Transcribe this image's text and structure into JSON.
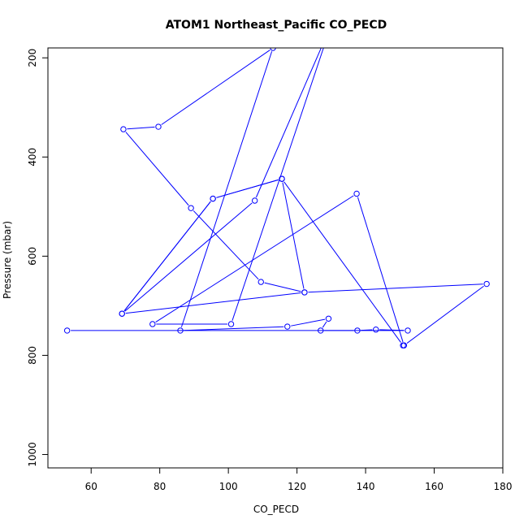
{
  "chart_data": {
    "type": "line",
    "title": "ATOM1 Northeast_Pacific CO_PECD",
    "xlabel": "CO_PECD",
    "ylabel": "Pressure (mbar)",
    "xlim": [
      47.4,
      180
    ],
    "ylim": [
      1027,
      180
    ],
    "y_reversed": true,
    "grid": false,
    "x_ticks": [
      60,
      80,
      100,
      120,
      140,
      160,
      180
    ],
    "y_ticks": [
      200,
      400,
      600,
      800,
      1000
    ],
    "series": [
      {
        "color": "#0000ff",
        "marker": "open-circle",
        "points": [
          {
            "x": 150.9,
            "y": 780
          },
          {
            "x": 115.6,
            "y": 444
          },
          {
            "x": 95.5,
            "y": 484
          },
          {
            "x": 69.0,
            "y": 716
          },
          {
            "x": 107.7,
            "y": 488
          },
          {
            "x": 130.0,
            "y": 133
          },
          {
            "x": 100.8,
            "y": 737
          },
          {
            "x": 77.9,
            "y": 737
          },
          {
            "x": 137.4,
            "y": 474
          },
          {
            "x": 151.2,
            "y": 780
          },
          {
            "x": 175.3,
            "y": 656
          },
          {
            "x": 122.2,
            "y": 673
          },
          {
            "x": 69.0,
            "y": 716
          },
          {
            "x": 95.5,
            "y": 484
          },
          {
            "x": 115.6,
            "y": 444
          },
          {
            "x": 122.2,
            "y": 673
          },
          {
            "x": 109.5,
            "y": 652
          },
          {
            "x": 89.1,
            "y": 503
          },
          {
            "x": 69.4,
            "y": 344
          },
          {
            "x": 79.6,
            "y": 339
          },
          {
            "x": 113.0,
            "y": 180
          },
          {
            "x": 86.0,
            "y": 750
          },
          {
            "x": 117.2,
            "y": 742
          },
          {
            "x": 129.2,
            "y": 726
          },
          {
            "x": 126.9,
            "y": 750
          },
          {
            "x": 137.6,
            "y": 750
          },
          {
            "x": 143.0,
            "y": 748
          },
          {
            "x": 152.3,
            "y": 750
          },
          {
            "x": 53.0,
            "y": 750
          }
        ]
      }
    ]
  }
}
